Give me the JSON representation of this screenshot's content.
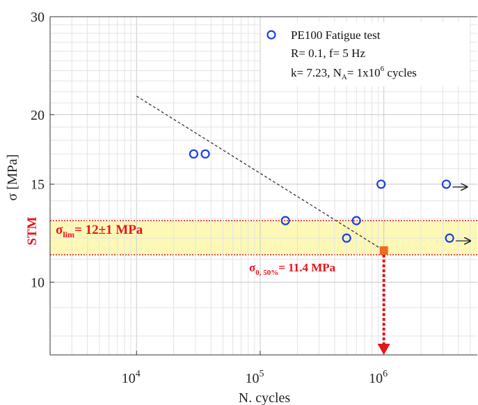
{
  "chart_data": {
    "type": "scatter",
    "xlabel": "N. cycles",
    "ylabel": "σ [MPa]",
    "x_scale": "log",
    "y_scale": "log",
    "xlim": [
      2000,
      5700000
    ],
    "ylim": [
      7.4,
      30
    ],
    "grid": true,
    "x_ticks": [
      {
        "value": 10000,
        "base": "10",
        "exp": "4"
      },
      {
        "value": 100000,
        "base": "10",
        "exp": "5"
      },
      {
        "value": 1000000,
        "base": "10",
        "exp": "6"
      }
    ],
    "y_ticks": [
      {
        "value": 10,
        "label": "10"
      },
      {
        "value": 15,
        "label": "15"
      },
      {
        "value": 20,
        "label": "20"
      },
      {
        "value": 30,
        "label": "30"
      }
    ],
    "series": [
      {
        "name": "PE100 Fatigue test",
        "color": "#1a3fe0",
        "marker": "open-circle",
        "points": [
          {
            "x": 29000,
            "y": 17.0
          },
          {
            "x": 36000,
            "y": 17.0
          },
          {
            "x": 160000,
            "y": 12.9
          },
          {
            "x": 500000,
            "y": 12.0
          },
          {
            "x": 600000,
            "y": 12.9
          },
          {
            "x": 950000,
            "y": 15.0
          },
          {
            "x": 3200000,
            "y": 15.0,
            "runout": true
          },
          {
            "x": 3400000,
            "y": 12.0,
            "runout": true
          }
        ]
      }
    ],
    "fit_line": {
      "k": 7.23,
      "from": {
        "x": 10000,
        "y": 21.6
      },
      "to": {
        "x": 1000000,
        "y": 11.4
      },
      "style": "dashed",
      "color": "#333333"
    },
    "median_point": {
      "x": 1000000,
      "y": 11.4,
      "color": "#f26a1b"
    },
    "stm_band": {
      "label": "STM",
      "y_low": 11.2,
      "y_high": 12.9,
      "fill": "#fdf8b6",
      "border": "#e8141b"
    },
    "legend": {
      "position": "top-right",
      "line1": "PE100 Fatigue test",
      "line2": "R= 0.1, f= 5 Hz",
      "line3_a": "k= 7.23, N",
      "line3_sub": "A",
      "line3_b": "= 1x10",
      "line3_sup": "6",
      "line3_c": " cycles"
    },
    "annotations": {
      "lim_main": "σ",
      "lim_sub": "lim",
      "lim_rest": "= 12±1 MPa",
      "median_main": "σ",
      "median_sub": "0, 50%",
      "median_rest": "= 11.4 MPa"
    }
  }
}
